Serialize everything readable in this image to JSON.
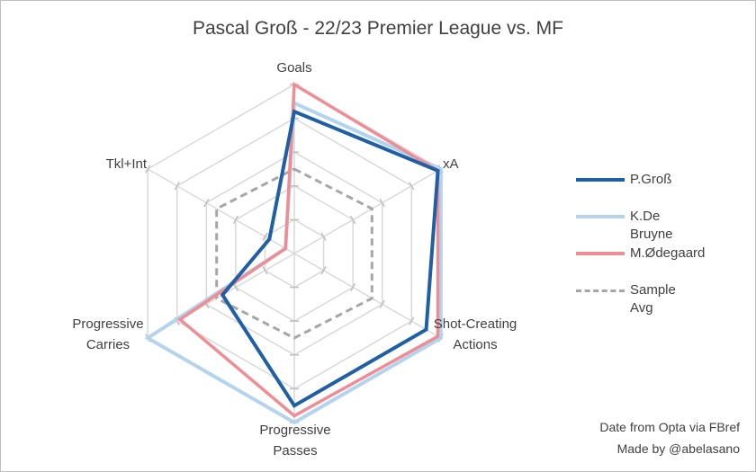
{
  "chart_data": {
    "type": "radar",
    "title": "Pascal Groß - 22/23 Premier League vs. MF",
    "axes": [
      "Goals",
      "xA",
      "Shot-Creating Actions",
      "Progressive Passes",
      "Progressive Carries",
      "Tkl+Int"
    ],
    "axis_label_lines": [
      [
        "Goals"
      ],
      [
        "xA"
      ],
      [
        "Shot-Creating",
        "Actions"
      ],
      [
        "Progressive",
        "Passes"
      ],
      [
        "Progressive",
        "Carries"
      ],
      [
        "Tkl+Int"
      ]
    ],
    "range": [
      0,
      1
    ],
    "gridlines": 5,
    "series": [
      {
        "name": "P.Groß",
        "values": [
          0.84,
          0.98,
          0.9,
          0.9,
          0.49,
          0.17
        ],
        "color": "#1f5fa6",
        "style": "solid"
      },
      {
        "name": "K.De Bruyne",
        "values": [
          0.89,
          1.0,
          1.0,
          1.0,
          1.0,
          0.06
        ],
        "color": "#b4d3ee",
        "style": "solid"
      },
      {
        "name": "M.Ødegaard",
        "values": [
          1.0,
          0.98,
          0.98,
          0.96,
          0.78,
          0.06
        ],
        "color": "#ee8d93",
        "style": "solid"
      },
      {
        "name": "Sample Avg",
        "values": [
          0.5,
          0.53,
          0.53,
          0.5,
          0.53,
          0.53
        ],
        "color": "#a6a6a6",
        "style": "dashed"
      }
    ],
    "legend_position": "right"
  },
  "footer": {
    "line1": "Date from Opta via FBref",
    "line2": "Made by @abelasano"
  }
}
